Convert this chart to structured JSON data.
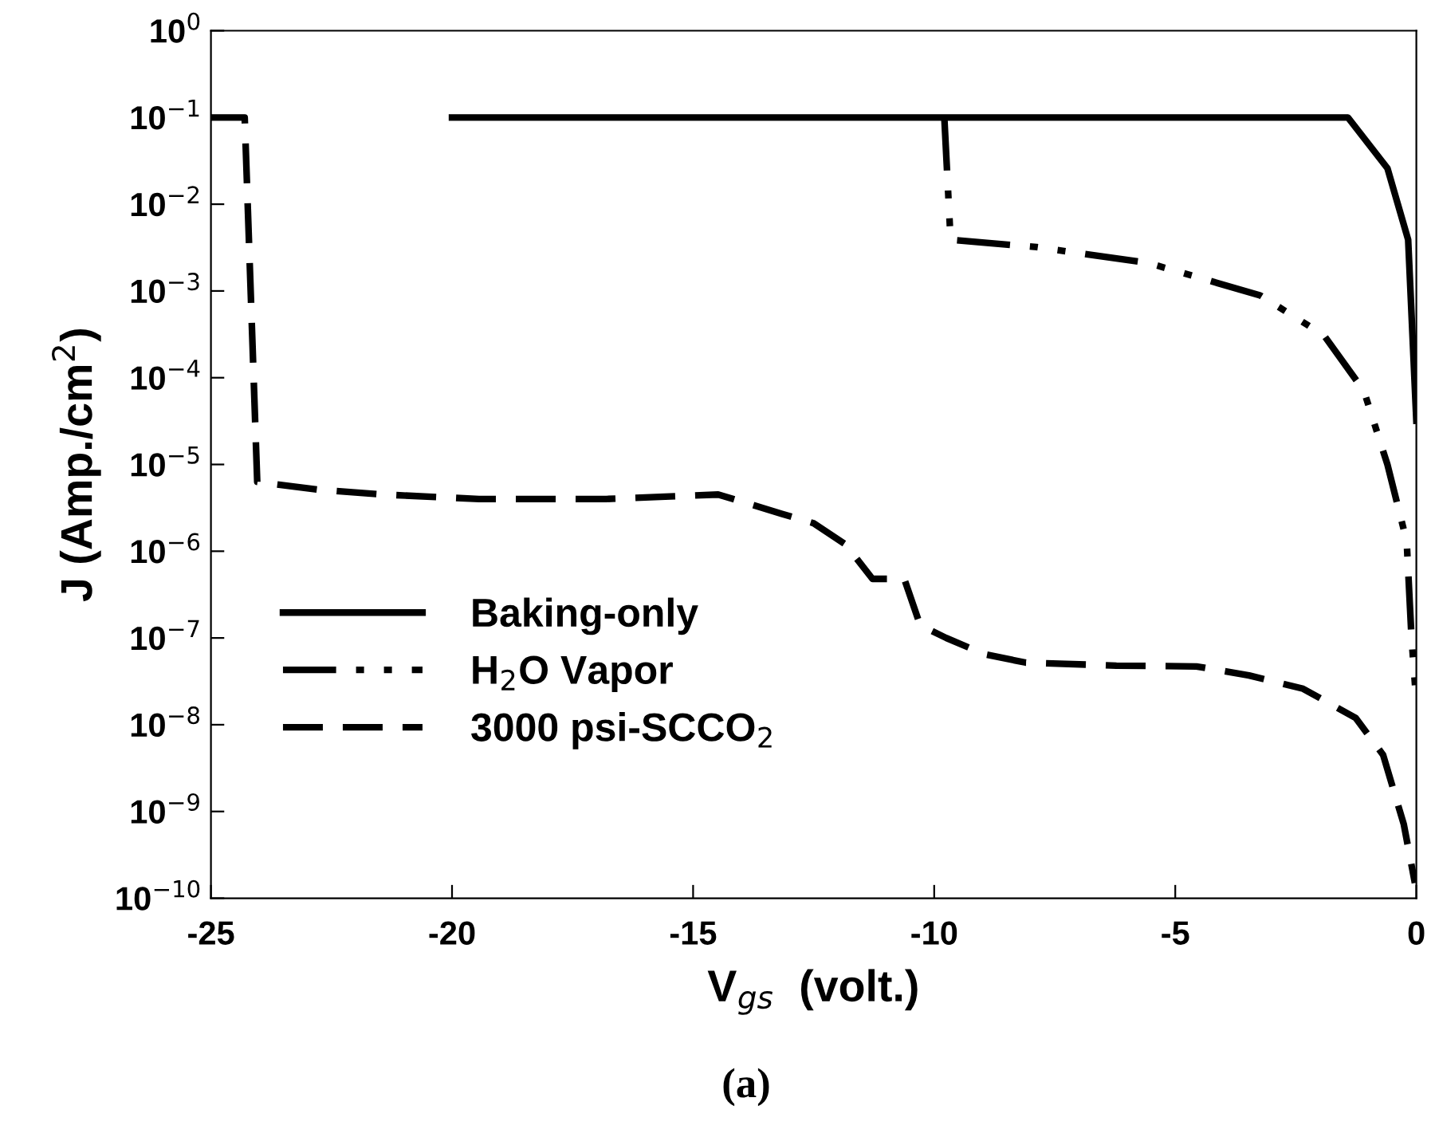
{
  "chart_data": {
    "type": "line",
    "xlabel": "V$_{gs}$  (volt.)",
    "ylabel": "J (Amp./cm$^{2}$)",
    "log": "y",
    "xlim": [
      -25,
      0
    ],
    "xticks": [
      -25,
      -20,
      -15,
      -10,
      -5,
      0
    ],
    "ylim": [
      1e-10,
      1
    ],
    "yticks": [
      {
        "value": 1e-10,
        "label": "10$^{−10}$"
      },
      {
        "value": 1e-09,
        "label": "10$^{−9}$"
      },
      {
        "value": 1e-08,
        "label": "10$^{−8}$"
      },
      {
        "value": 1e-07,
        "label": "10$^{−7}$"
      },
      {
        "value": 1e-06,
        "label": "10$^{−6}$"
      },
      {
        "value": 1e-05,
        "label": "10$^{−5}$"
      },
      {
        "value": 0.0001,
        "label": "10$^{−4}$"
      },
      {
        "value": 0.001,
        "label": "10$^{−3}$"
      },
      {
        "value": 0.01,
        "label": "10$^{−2}$"
      },
      {
        "value": 0.1,
        "label": "10$^{−1}$"
      },
      {
        "value": 1,
        "label": "10$^{0}$"
      }
    ],
    "legend": "lower left",
    "series": [
      {
        "name": "Baking-only",
        "color": "#000000",
        "line_style": "solid",
        "x": [
          -20,
          -1.42,
          -0.6,
          -0.17,
          0
        ],
        "values": [
          0.1,
          0.1,
          0.026,
          0.0039,
          3.2e-05
        ]
      },
      {
        "name": "H$_{2}$O Vapor",
        "color": "#000000",
        "line_style": "dashdotdot",
        "x": [
          -9.79,
          -9.66,
          -7.87,
          -5.56,
          -3.24,
          -1.92,
          -1.09,
          -0.6,
          -0.2,
          -0.1,
          0
        ],
        "values": [
          0.1,
          0.0039,
          0.0032,
          0.0021,
          0.00089,
          0.00031,
          7.1e-05,
          1e-05,
          1.3e-06,
          1e-07,
          1.8e-08
        ]
      },
      {
        "name": "3000 psi-SCCO$_{2}$",
        "color": "#000000",
        "line_style": "dashed",
        "x": [
          -25,
          -24.3,
          -24.04,
          -22.75,
          -21.43,
          -19.44,
          -16.8,
          -14.48,
          -13.16,
          -12.5,
          -11.84,
          -11.28,
          -10.62,
          -10.29,
          -9.75,
          -8.96,
          -8.1,
          -6.22,
          -4.56,
          -3.47,
          -2.35,
          -1.26,
          -0.69,
          -0.26,
          -0.03
        ],
        "values": [
          0.1,
          0.1,
          6.3e-06,
          5.1e-06,
          4.5e-06,
          4e-06,
          4e-06,
          4.5e-06,
          2.7e-06,
          2.1e-06,
          1.2e-06,
          4.8e-07,
          4.8e-07,
          1.4e-07,
          1e-07,
          6.5e-08,
          5.2e-08,
          4.8e-08,
          4.7e-08,
          3.7e-08,
          2.6e-08,
          1.2e-08,
          4.5e-09,
          7.1e-10,
          1.5e-10
        ]
      }
    ],
    "annotations": [
      "(a)"
    ]
  }
}
